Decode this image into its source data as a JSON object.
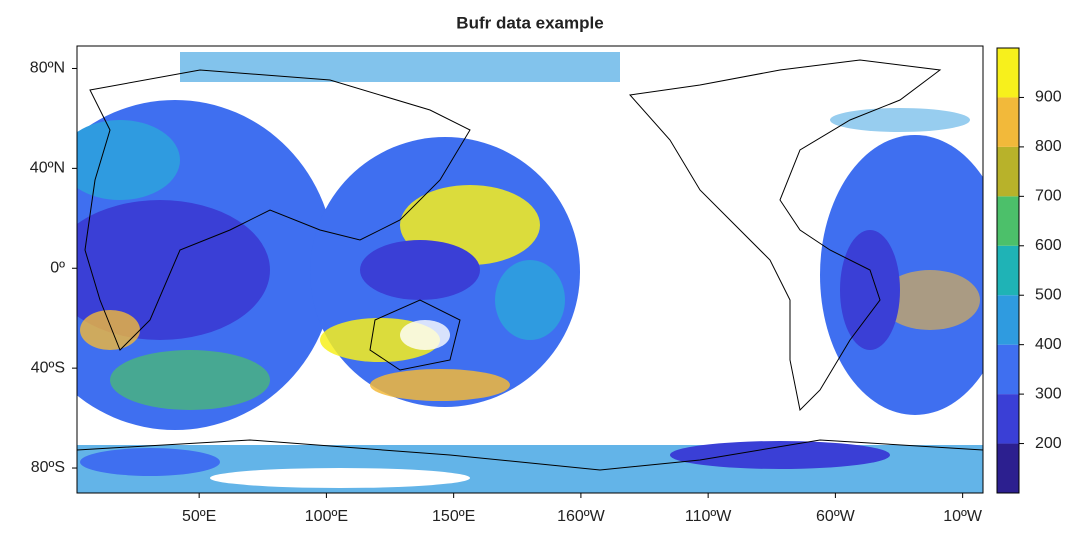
{
  "chart_data": {
    "type": "map",
    "title": "Bufr data example",
    "xlim": [
      2,
      358
    ],
    "ylim": [
      -90,
      89
    ],
    "xticks": [
      {
        "value": 50,
        "label": "50ºE"
      },
      {
        "value": 100,
        "label": "100ºE"
      },
      {
        "value": 150,
        "label": "150ºE"
      },
      {
        "value": 200,
        "label": "160ºW"
      },
      {
        "value": 250,
        "label": "110ºW"
      },
      {
        "value": 300,
        "label": "60ºW"
      },
      {
        "value": 350,
        "label": "10ºW"
      }
    ],
    "yticks": [
      {
        "value": 80,
        "label": "80ºN"
      },
      {
        "value": 40,
        "label": "40ºN"
      },
      {
        "value": 0,
        "label": "0º"
      },
      {
        "value": -40,
        "label": "40ºS"
      },
      {
        "value": -80,
        "label": "80ºS"
      }
    ],
    "colorbar": {
      "lim": [
        100,
        1000
      ],
      "ticks": [
        200,
        300,
        400,
        500,
        600,
        700,
        800,
        900
      ],
      "colors": [
        "#2c1f8f",
        "#3a3fd6",
        "#3f6ff0",
        "#2f9be0",
        "#1fb3b6",
        "#4cc06a",
        "#b8b22a",
        "#f2b93a",
        "#f7f01c"
      ]
    }
  }
}
